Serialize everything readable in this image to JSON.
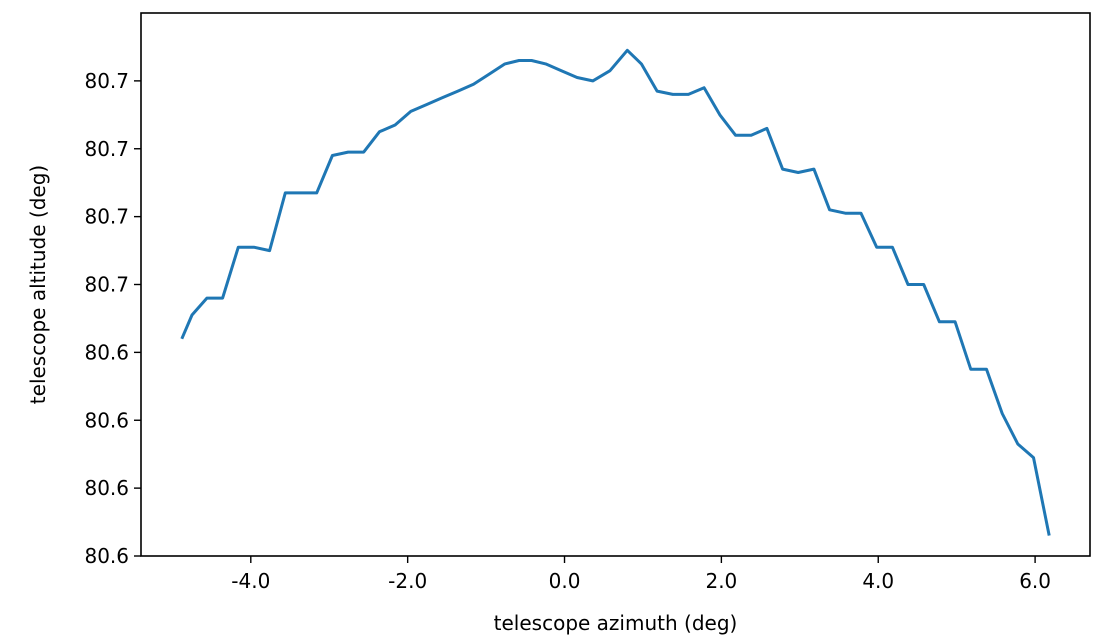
{
  "chart_data": {
    "type": "line",
    "title": "",
    "xlabel": "telescope azimuth (deg)",
    "ylabel": "telescope altitude (deg)",
    "xlim": [
      -5.4,
      6.7
    ],
    "ylim": [
      80.57,
      80.73
    ],
    "xticks": [
      -4.0,
      -2.0,
      0.0,
      2.0,
      4.0,
      6.0
    ],
    "xtick_labels": [
      "-4.0",
      "-2.0",
      "0.0",
      "2.0",
      "4.0",
      "6.0"
    ],
    "yticks": [
      80.57,
      80.59,
      80.61,
      80.63,
      80.65,
      80.67,
      80.69,
      80.71
    ],
    "ytick_labels": [
      "80.6",
      "80.6",
      "80.6",
      "80.6",
      "80.7",
      "80.7",
      "80.7",
      "80.7"
    ],
    "grid": false,
    "color": "#1f77b4",
    "series": [
      {
        "x": [
          -4.88,
          -4.75,
          -4.56,
          -4.36,
          -4.16,
          -3.96,
          -3.76,
          -3.56,
          -3.36,
          -3.16,
          -2.96,
          -2.76,
          -2.56,
          -2.36,
          -2.16,
          -1.96,
          -1.76,
          -1.56,
          -1.36,
          -1.16,
          -0.96,
          -0.76,
          -0.58,
          -0.42,
          -0.24,
          -0.04,
          0.16,
          0.36,
          0.58,
          0.8,
          0.98,
          1.18,
          1.38,
          1.58,
          1.78,
          1.98,
          2.18,
          2.38,
          2.58,
          2.78,
          2.98,
          3.18,
          3.38,
          3.58,
          3.78,
          3.98,
          4.18,
          4.38,
          4.58,
          4.78,
          4.98,
          5.18,
          5.38,
          5.58,
          5.78,
          5.98,
          6.18
        ],
        "y": [
          80.634,
          80.641,
          80.646,
          80.646,
          80.661,
          80.661,
          80.66,
          80.677,
          80.677,
          80.677,
          80.688,
          80.689,
          80.689,
          80.695,
          80.697,
          80.701,
          80.703,
          80.705,
          80.707,
          80.709,
          80.712,
          80.715,
          80.716,
          80.716,
          80.715,
          80.713,
          80.711,
          80.71,
          80.713,
          80.719,
          80.715,
          80.707,
          80.706,
          80.706,
          80.708,
          80.7,
          80.694,
          80.694,
          80.696,
          80.684,
          80.683,
          80.684,
          80.672,
          80.671,
          80.671,
          80.661,
          80.661,
          80.65,
          80.65,
          80.639,
          80.639,
          80.625,
          80.625,
          80.612,
          80.603,
          80.599,
          80.576
        ]
      }
    ]
  }
}
